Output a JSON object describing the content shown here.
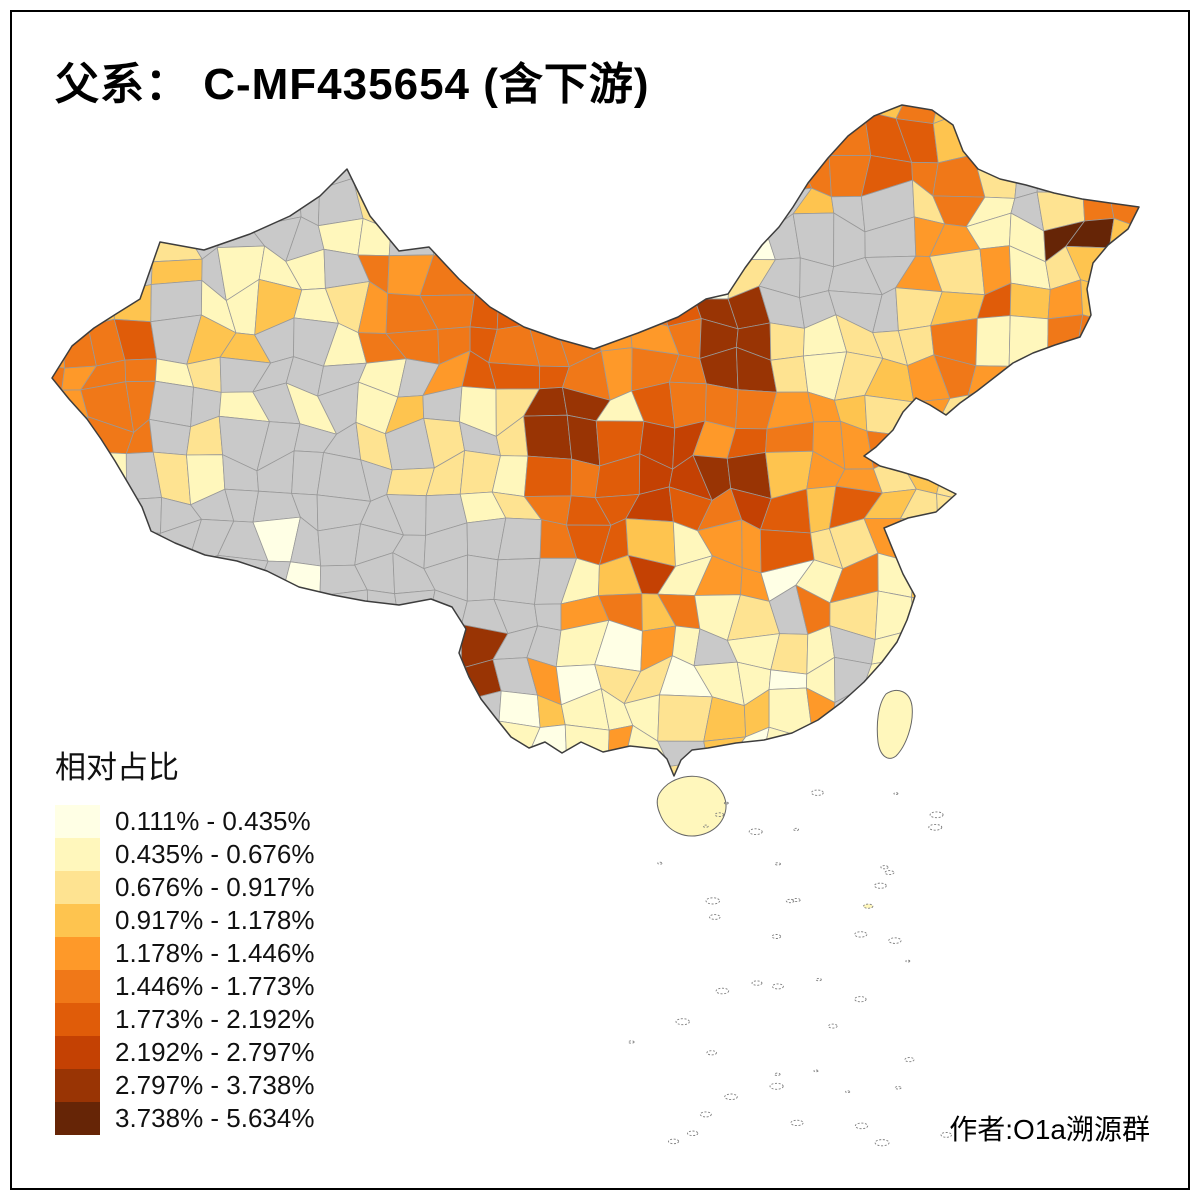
{
  "title": "父系： C-MF435654 (含下游)",
  "legend": {
    "title": "相对占比",
    "entries": [
      {
        "label": "0.111% - 0.435%",
        "color": "#FFFFE5"
      },
      {
        "label": "0.435% - 0.676%",
        "color": "#FFF7BC"
      },
      {
        "label": "0.676% - 0.917%",
        "color": "#FEE391"
      },
      {
        "label": "0.917% - 1.178%",
        "color": "#FEC44F"
      },
      {
        "label": "1.178% - 1.446%",
        "color": "#FE9929"
      },
      {
        "label": "1.446% - 1.773%",
        "color": "#F07818"
      },
      {
        "label": "1.773% - 2.192%",
        "color": "#E05C09"
      },
      {
        "label": "2.192% - 2.797%",
        "color": "#C44103"
      },
      {
        "label": "2.797% - 3.738%",
        "color": "#993404"
      },
      {
        "label": "3.738% - 5.634%",
        "color": "#662506"
      }
    ],
    "no_data_color": "#C9C9C9"
  },
  "map": {
    "outline_color": "#3d3d3d",
    "cell_border_color": "#999999"
  },
  "attribution": "作者:O1a溯源群"
}
